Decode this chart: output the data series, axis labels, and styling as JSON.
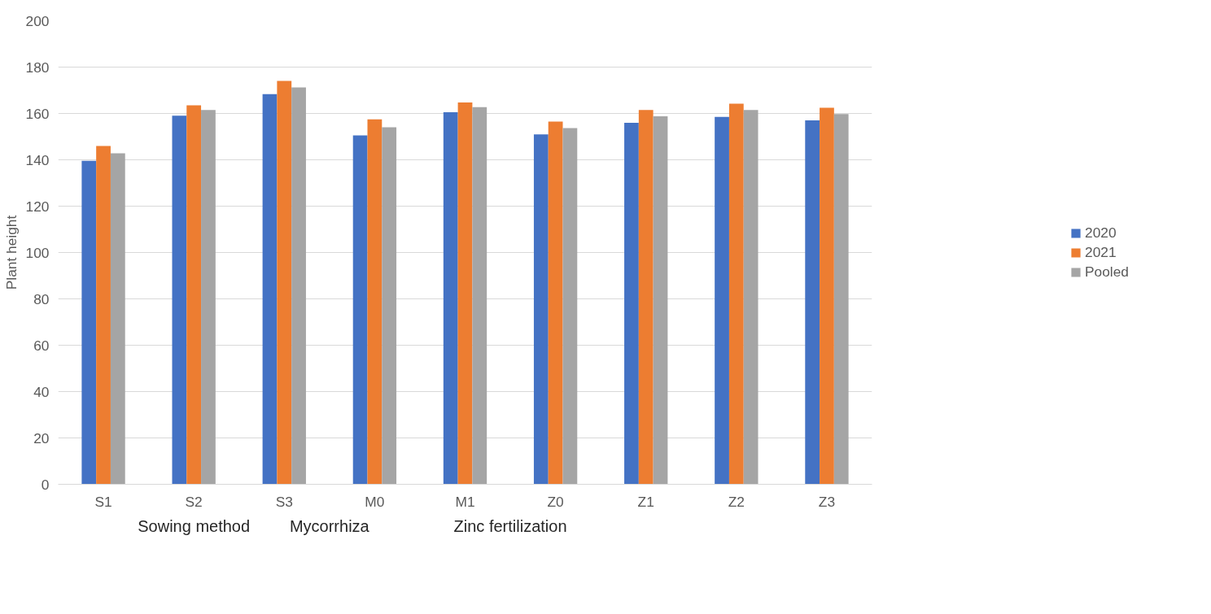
{
  "chart_data": {
    "type": "bar",
    "ylabel": "Plant height",
    "categories": [
      "S1",
      "S2",
      "S3",
      "M0",
      "M1",
      "Z0",
      "Z1",
      "Z2",
      "Z3"
    ],
    "series": [
      {
        "name": "2020",
        "color": "#4472c4",
        "values": [
          139.6,
          159,
          168.3,
          150.5,
          160.5,
          151,
          156,
          158.5,
          157
        ]
      },
      {
        "name": "2021",
        "color": "#ed7d31",
        "values": [
          146,
          163.5,
          174,
          157.5,
          164.7,
          156.5,
          161.5,
          164.2,
          162.5
        ]
      },
      {
        "name": "Pooled",
        "color": "#a5a5a5",
        "values": [
          142.8,
          161.5,
          171.2,
          154,
          162.7,
          153.7,
          158.8,
          161.5,
          159.7
        ]
      }
    ],
    "ylim": [
      0,
      200
    ],
    "yticks": [
      0,
      20,
      40,
      60,
      80,
      100,
      120,
      140,
      160,
      180,
      200
    ],
    "grid": "y",
    "legend": "right",
    "annotations": [
      "Sowing method",
      "Mycorrhiza",
      "Zinc fertilization"
    ]
  }
}
